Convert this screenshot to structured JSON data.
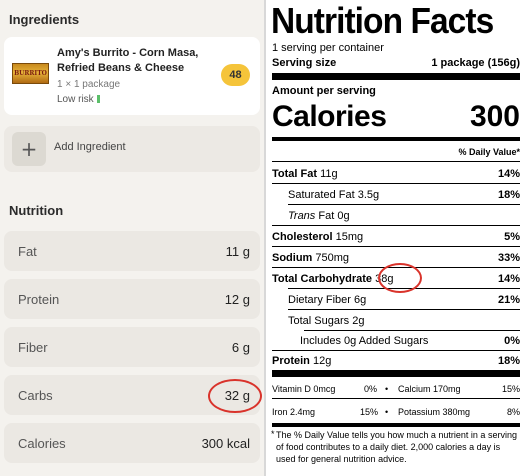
{
  "app": {
    "ingredients_title": "Ingredients",
    "ingredient": {
      "name": "Amy's Burrito - Corn Masa, Refried Beans & Cheese",
      "quantity": "1 × 1 package",
      "risk": "Low risk",
      "score": "48",
      "thumb_text": "BURRITO"
    },
    "add_ingredient_label": "Add Ingredient",
    "nutrition_title": "Nutrition",
    "nutrients": [
      {
        "label": "Fat",
        "value": "11 g"
      },
      {
        "label": "Protein",
        "value": "12 g"
      },
      {
        "label": "Fiber",
        "value": "6 g"
      },
      {
        "label": "Carbs",
        "value": "32 g"
      },
      {
        "label": "Calories",
        "value": "300 kcal"
      }
    ],
    "colors": {
      "score_badge": "#f5c43a",
      "risk_indicator": "#5cbf6a",
      "highlight_circle": "#d9332b"
    }
  },
  "label": {
    "title": "Nutrition Facts",
    "servings": "1 serving per container",
    "serving_size_label": "Serving size",
    "serving_size_value": "1 package (156g)",
    "amount_per_serving": "Amount per serving",
    "calories_label": "Calories",
    "calories_value": "300",
    "dv_header": "% Daily Value*",
    "rows": {
      "total_fat": {
        "label": "Total Fat",
        "amount": "11g",
        "dv": "14%"
      },
      "sat_fat": {
        "label": "Saturated Fat",
        "amount": "3.5g",
        "dv": "18%"
      },
      "trans_fat": {
        "label": "Trans",
        "amount": "Fat 0g"
      },
      "cholesterol": {
        "label": "Cholesterol",
        "amount": "15mg",
        "dv": "5%"
      },
      "sodium": {
        "label": "Sodium",
        "amount": "750mg",
        "dv": "33%"
      },
      "total_carb": {
        "label": "Total Carbohydrate",
        "amount": "38g",
        "dv": "14%"
      },
      "fiber": {
        "label": "Dietary Fiber",
        "amount": "6g",
        "dv": "21%"
      },
      "total_sugars": {
        "label": "Total Sugars",
        "amount": "2g"
      },
      "added_sugars": {
        "label": "Includes 0g Added Sugars",
        "dv": "0%"
      },
      "protein": {
        "label": "Protein",
        "amount": "12g",
        "dv": "18%"
      }
    },
    "micros": {
      "vit_d": "Vitamin D 0mcg",
      "vit_d_dv": "0%",
      "calcium": "Calcium 170mg",
      "calcium_dv": "15%",
      "iron": "Iron 2.4mg",
      "iron_dv": "15%",
      "potassium": "Potassium 380mg",
      "potassium_dv": "8%",
      "bullet": "•"
    },
    "footnote_star": "*",
    "footnote": "The % Daily Value tells you how much a nutrient in a serving of food contributes to a daily diet. 2,000 calories a day is used for general nutrition advice."
  }
}
